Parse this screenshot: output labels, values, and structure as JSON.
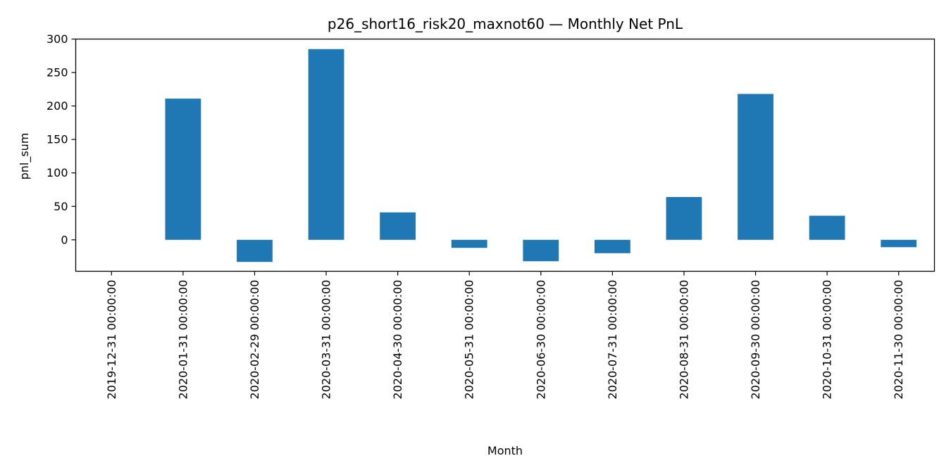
{
  "chart_data": {
    "type": "bar",
    "title": "p26_short16_risk20_maxnot60 — Monthly Net PnL",
    "xlabel": "Month",
    "ylabel": "pnl_sum",
    "categories": [
      "2019-12-31 00:00:00",
      "2020-01-31 00:00:00",
      "2020-02-29 00:00:00",
      "2020-03-31 00:00:00",
      "2020-04-30 00:00:00",
      "2020-05-31 00:00:00",
      "2020-06-30 00:00:00",
      "2020-07-31 00:00:00",
      "2020-08-31 00:00:00",
      "2020-09-30 00:00:00",
      "2020-10-31 00:00:00",
      "2020-11-30 00:00:00"
    ],
    "values": [
      0,
      211,
      -33,
      285,
      41,
      -12,
      -32,
      -20,
      64,
      218,
      36,
      -11
    ],
    "ylim": [
      -47,
      300
    ],
    "yticks": [
      0,
      50,
      100,
      150,
      200,
      250,
      300
    ],
    "bar_color": "#1f77b4",
    "grid": false,
    "legend": "none"
  }
}
